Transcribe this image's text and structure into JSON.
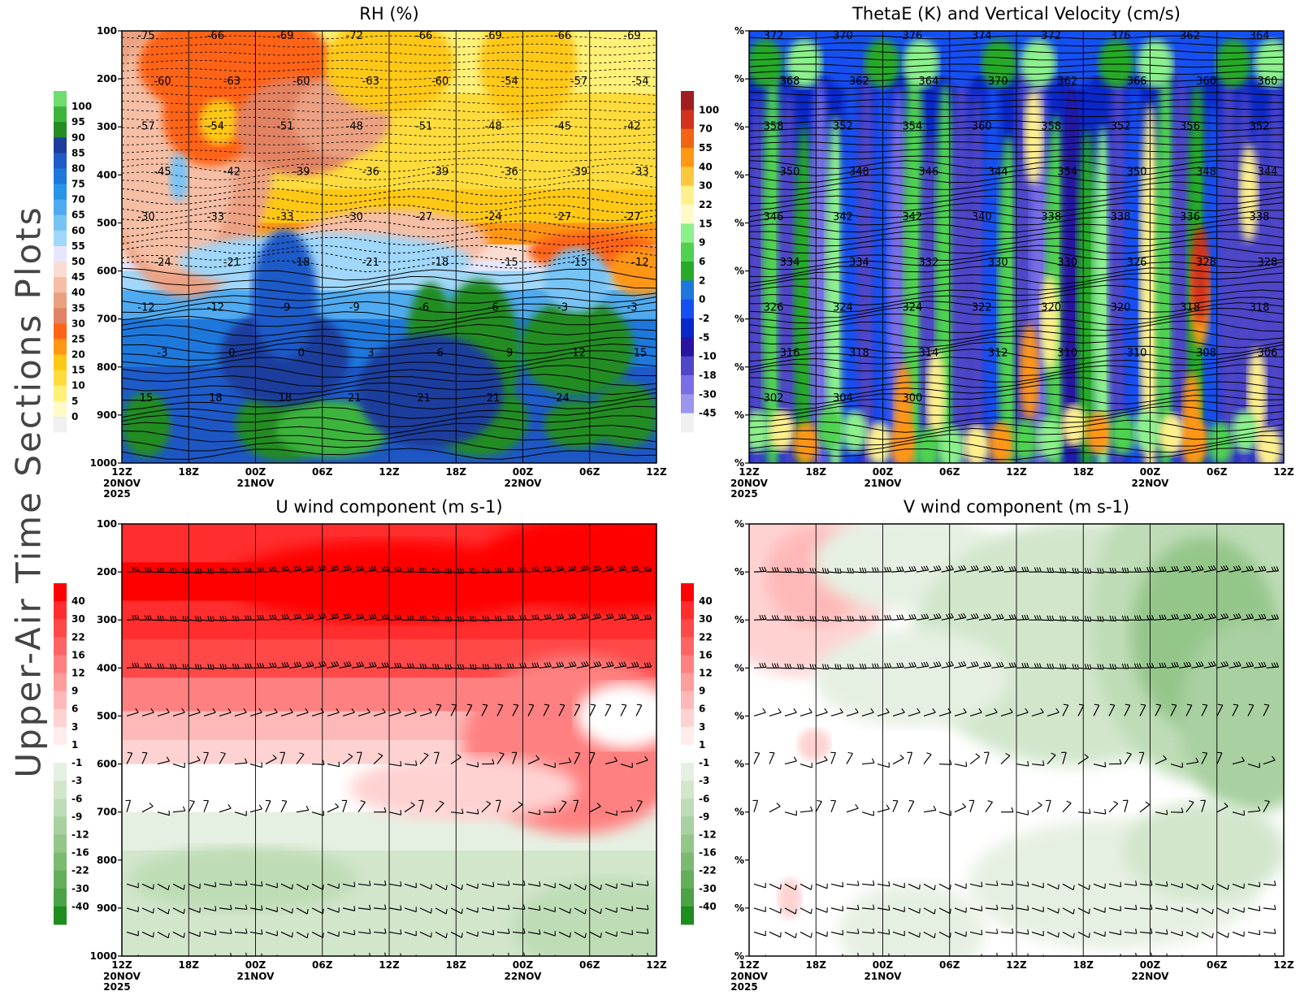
{
  "side_title": "Upper-Air Time Sections Plots",
  "chart_data": [
    {
      "type": "heatmap",
      "title": "RH (%)",
      "x_ticks": [
        "12Z",
        "18Z",
        "00Z",
        "06Z",
        "12Z",
        "18Z",
        "00Z",
        "06Z",
        "12Z"
      ],
      "x_date_labels": [
        {
          "tick": 0,
          "lines": [
            "20NOV",
            "2025"
          ]
        },
        {
          "tick": 2,
          "lines": [
            "21NOV"
          ]
        },
        {
          "tick": 6,
          "lines": [
            "22NOV"
          ]
        }
      ],
      "y_ticks": [
        "100",
        "200",
        "300",
        "400",
        "500",
        "600",
        "700",
        "800",
        "900",
        "1000"
      ],
      "ylim": [
        1000,
        100
      ],
      "colorbar_levels": [
        "100",
        "95",
        "90",
        "85",
        "80",
        "75",
        "70",
        "65",
        "60",
        "55",
        "50",
        "45",
        "40",
        "35",
        "30",
        "25",
        "20",
        "15",
        "10",
        "5",
        "0"
      ],
      "colorbar_colors": [
        "#6fdc6f",
        "#3cb43c",
        "#238c23",
        "#1e3c9c",
        "#1e5ac8",
        "#1e78dc",
        "#2896e6",
        "#50aaf0",
        "#78c3f5",
        "#a0d7fa",
        "#e6e6ff",
        "#fadcd2",
        "#f5bea5",
        "#eba082",
        "#e18264",
        "#ff6414",
        "#ff9614",
        "#ffc814",
        "#ffdc3c",
        "#fff078",
        "#fffac8",
        "#f0f0f0"
      ],
      "temperature_contour_labels": [
        "-75",
        "-66",
        "-69",
        "-72",
        "-66",
        "-69",
        "-66",
        "-69",
        "-60",
        "-63",
        "-60",
        "-63",
        "-60",
        "-54",
        "-57",
        "-54",
        "-57",
        "-54",
        "-51",
        "-48",
        "-51",
        "-48",
        "-45",
        "-42",
        "-45",
        "-42",
        "-39",
        "-36",
        "-39",
        "-36",
        "-39",
        "-33",
        "-30",
        "-33",
        "-33",
        "-30",
        "-27",
        "-24",
        "-27",
        "-27",
        "-24",
        "-21",
        "-18",
        "-21",
        "-18",
        "-15",
        "-15",
        "-12",
        "-12",
        "-12",
        "-9",
        "-9",
        "-6",
        "-6",
        "-3",
        "-3",
        "-3",
        "0",
        "0",
        "3",
        "6",
        "9",
        "12",
        "15",
        "15",
        "18",
        "18",
        "21",
        "21",
        "21",
        "24"
      ]
    },
    {
      "type": "heatmap",
      "title": "ThetaE (K) and Vertical Velocity (cm/s)",
      "x_ticks": [
        "12Z",
        "18Z",
        "00Z",
        "06Z",
        "12Z",
        "18Z",
        "00Z",
        "06Z",
        "12Z"
      ],
      "x_date_labels": [
        {
          "tick": 0,
          "lines": [
            "20NOV",
            "2025"
          ]
        },
        {
          "tick": 2,
          "lines": [
            "21NOV"
          ]
        },
        {
          "tick": 6,
          "lines": [
            "22NOV"
          ]
        }
      ],
      "y_ticks": [
        "%",
        "%",
        "%",
        "%",
        "%",
        "%",
        "%",
        "%",
        "%",
        "%"
      ],
      "colorbar_levels": [
        "100",
        "70",
        "55",
        "40",
        "30",
        "22",
        "15",
        "9",
        "6",
        "2",
        "0",
        "-2",
        "-5",
        "-10",
        "-18",
        "-30",
        "-45"
      ],
      "colorbar_colors": [
        "#a01e1e",
        "#d2321e",
        "#f06414",
        "#ff9614",
        "#ffc83c",
        "#fff08c",
        "#fffac8",
        "#8cf08c",
        "#50d250",
        "#28aa28",
        "#1e78dc",
        "#1450f0",
        "#0a28c8",
        "#2814a0",
        "#5046c8",
        "#786ee6",
        "#9c96f0",
        "#f0f0f0"
      ],
      "thetae_contour_labels": [
        "372",
        "370",
        "376",
        "374",
        "372",
        "376",
        "362",
        "364",
        "368",
        "362",
        "364",
        "370",
        "362",
        "366",
        "360",
        "360",
        "358",
        "352",
        "354",
        "360",
        "358",
        "352",
        "356",
        "352",
        "350",
        "348",
        "346",
        "344",
        "354",
        "350",
        "348",
        "344",
        "346",
        "342",
        "342",
        "340",
        "338",
        "338",
        "336",
        "338",
        "334",
        "334",
        "332",
        "330",
        "330",
        "326",
        "328",
        "328",
        "326",
        "324",
        "324",
        "322",
        "320",
        "320",
        "318",
        "318",
        "316",
        "318",
        "314",
        "312",
        "310",
        "310",
        "308",
        "306",
        "302",
        "304",
        "300"
      ]
    },
    {
      "type": "heatmap",
      "title": "U wind component (m s-1)",
      "x_ticks": [
        "12Z",
        "18Z",
        "00Z",
        "06Z",
        "12Z",
        "18Z",
        "00Z",
        "06Z",
        "12Z"
      ],
      "x_date_labels": [
        {
          "tick": 0,
          "lines": [
            "20NOV",
            "2025"
          ]
        },
        {
          "tick": 2,
          "lines": [
            "21NOV"
          ]
        },
        {
          "tick": 6,
          "lines": [
            "22NOV"
          ]
        }
      ],
      "y_ticks": [
        "100",
        "200",
        "300",
        "400",
        "500",
        "600",
        "700",
        "800",
        "900",
        "1000"
      ],
      "ylim": [
        1000,
        100
      ],
      "colorbar_levels": [
        "40",
        "30",
        "22",
        "16",
        "12",
        "9",
        "6",
        "3",
        "1",
        "-1",
        "-3",
        "-6",
        "-9",
        "-12",
        "-16",
        "-22",
        "-30",
        "-40"
      ],
      "colorbar_colors": [
        "#ff0000",
        "#ff2d2d",
        "#ff4848",
        "#ff6464",
        "#ff8080",
        "#ff9c9c",
        "#ffb8b8",
        "#ffd2d2",
        "#ffecec",
        "#ffffff",
        "#e6f0e2",
        "#d2e6cc",
        "#bedcb6",
        "#a8d0a0",
        "#94c68a",
        "#7cba72",
        "#64ae5c",
        "#4ca246",
        "#1e8c1e"
      ],
      "barb_levels_hpa": [
        200,
        300,
        400,
        500,
        600,
        700,
        850,
        900,
        950,
        1000
      ]
    },
    {
      "type": "heatmap",
      "title": "V wind component (m s-1)",
      "x_ticks": [
        "12Z",
        "18Z",
        "00Z",
        "06Z",
        "12Z",
        "18Z",
        "00Z",
        "06Z",
        "12Z"
      ],
      "x_date_labels": [
        {
          "tick": 0,
          "lines": [
            "20NOV",
            "2025"
          ]
        },
        {
          "tick": 2,
          "lines": [
            "21NOV"
          ]
        },
        {
          "tick": 6,
          "lines": [
            "22NOV"
          ]
        }
      ],
      "y_ticks": [
        "%",
        "%",
        "%",
        "%",
        "%",
        "%",
        "%",
        "%",
        "%",
        "%"
      ],
      "colorbar_levels": [
        "40",
        "30",
        "22",
        "16",
        "12",
        "9",
        "6",
        "3",
        "1",
        "-1",
        "-3",
        "-6",
        "-9",
        "-12",
        "-16",
        "-22",
        "-30",
        "-40"
      ],
      "colorbar_colors": [
        "#ff0000",
        "#ff2d2d",
        "#ff4848",
        "#ff6464",
        "#ff8080",
        "#ff9c9c",
        "#ffb8b8",
        "#ffd2d2",
        "#ffecec",
        "#ffffff",
        "#e6f0e2",
        "#d2e6cc",
        "#bedcb6",
        "#a8d0a0",
        "#94c68a",
        "#7cba72",
        "#64ae5c",
        "#4ca246",
        "#1e8c1e"
      ],
      "barb_levels_hpa": [
        200,
        300,
        400,
        500,
        600,
        700,
        850,
        900,
        950,
        1000
      ]
    }
  ]
}
